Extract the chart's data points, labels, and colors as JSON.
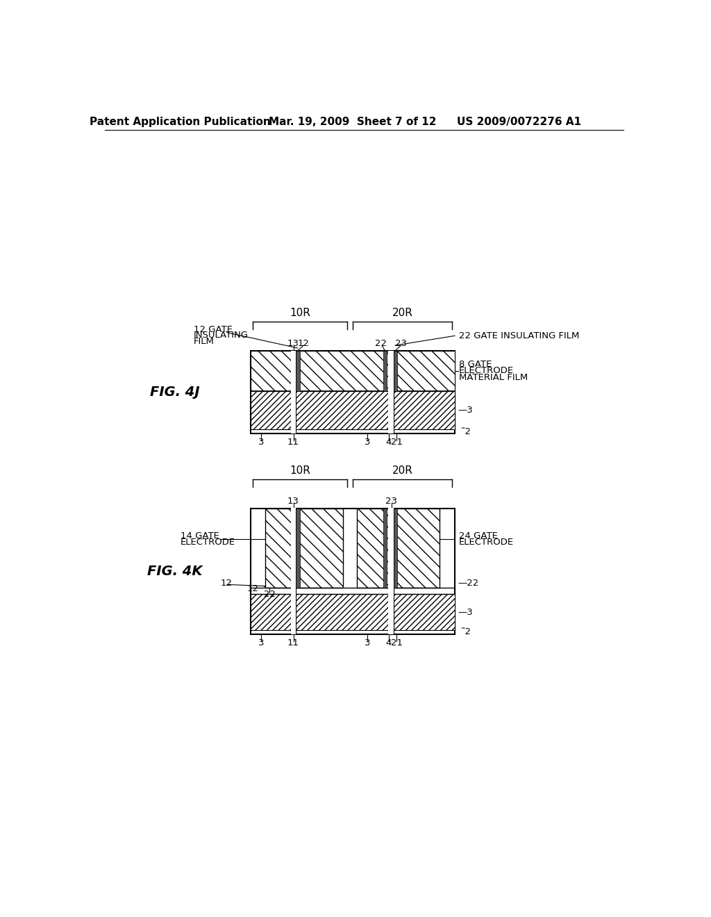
{
  "bg_color": "#ffffff",
  "header_left": "Patent Application Publication",
  "header_mid": "Mar. 19, 2009  Sheet 7 of 12",
  "header_right": "US 2009/0072276 A1",
  "fig4j_label": "FIG. 4J",
  "fig4k_label": "FIG. 4K",
  "header_fontsize": 11,
  "label_fontsize": 14,
  "annot_fontsize": 9.5
}
